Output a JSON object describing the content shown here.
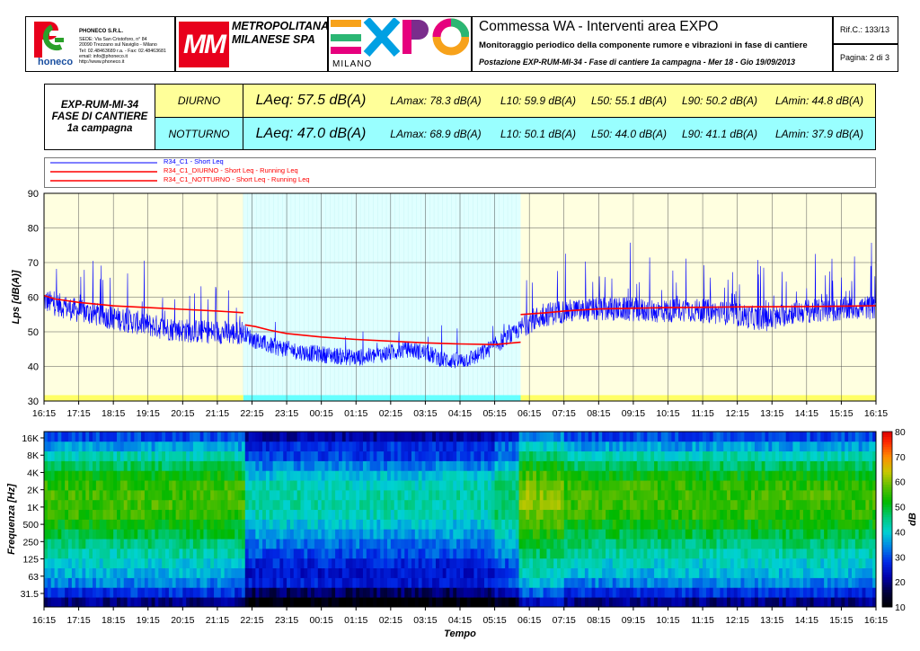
{
  "header": {
    "company": {
      "logo_text": "honeco",
      "name": "PHONECO S.R.L.",
      "lines": [
        "SEDE: Via San Cristoforo, n° 84",
        "20090 Trezzano sul Naviglio - Milano",
        "Tel: 02.48463689 r.a. - Fax: 02.48463681",
        "email: info@phoneco.it",
        "http://www.phoneco.it"
      ]
    },
    "client": {
      "logo_text": "MM",
      "name_line1": "METROPOLITANA",
      "name_line2": "MILANESE SPA"
    },
    "expo": {
      "logo_text": "EXPO",
      "sub": "MILANO"
    },
    "title": "Commessa WA - Interventi area EXPO",
    "subtitle": "Monitoraggio periodico della componente rumore e vibrazioni in fase di cantiere",
    "station": "Postazione EXP-RUM-MI-34 - Fase di cantiere 1a campagna - Mer 18 - Gio 19/09/2013",
    "ref": "Rif.C.: 133/13",
    "page": "Pagina: 2 di 3"
  },
  "summary": {
    "label_lines": [
      "EXP-RUM-MI-34",
      "FASE DI CANTIERE",
      "1a campagna"
    ],
    "colors": {
      "day": "#ffff99",
      "night": "#99ffff"
    },
    "rows": [
      {
        "period": "DIURNO",
        "laeq": "LAeq: 57.5 dB(A)",
        "lamax": "LAmax: 78.3 dB(A)",
        "l10": "L10: 59.9 dB(A)",
        "l50": "L50: 55.1 dB(A)",
        "l90": "L90: 50.2 dB(A)",
        "lamin": "LAmin: 44.8 dB(A)"
      },
      {
        "period": "NOTTURNO",
        "laeq": "LAeq: 47.0 dB(A)",
        "lamax": "LAmax: 68.9 dB(A)",
        "l10": "L10: 50.1 dB(A)",
        "l50": "L50: 44.0 dB(A)",
        "l90": "L90: 41.1 dB(A)",
        "lamin": "LAmin: 37.9 dB(A)"
      }
    ]
  },
  "chart_data": [
    {
      "type": "line",
      "legend": [
        {
          "name": "R34_C1 - Short Leq",
          "color": "#0000ff"
        },
        {
          "name": "R34_C1_DIURNO - Short Leq - Running Leq",
          "color": "#ff0000"
        },
        {
          "name": "R34_C1_NOTTURNO - Short Leq - Running Leq",
          "color": "#ff0000"
        }
      ],
      "ylabel": "Lps [dB(A)]",
      "ylim": [
        30,
        90
      ],
      "yticks": [
        30,
        40,
        50,
        60,
        70,
        80,
        90
      ],
      "xticks": [
        "16:15",
        "17:15",
        "18:15",
        "19:15",
        "20:15",
        "21:15",
        "22:15",
        "23:15",
        "00:15",
        "01:15",
        "02:15",
        "03:15",
        "04:15",
        "05:15",
        "06:15",
        "07:15",
        "08:15",
        "09:15",
        "10:15",
        "11:15",
        "12:15",
        "13:15",
        "14:15",
        "15:15",
        "16:15"
      ],
      "x_range_hours": [
        0,
        24
      ],
      "night_period_hours": [
        5.75,
        13.75
      ],
      "colors": {
        "day_bg": "#ffffe0",
        "night_bg": "#e0ffff",
        "day_band": "#ffff66",
        "night_band": "#66ffff",
        "short_leq": "#0000ff",
        "running_leq": "#ff0000"
      },
      "short_leq_profile": [
        [
          0,
          59
        ],
        [
          0.5,
          57.5
        ],
        [
          1,
          56
        ],
        [
          1.5,
          55
        ],
        [
          2,
          54
        ],
        [
          2.5,
          53
        ],
        [
          3,
          52
        ],
        [
          3.5,
          51
        ],
        [
          4,
          50.5
        ],
        [
          4.5,
          50
        ],
        [
          5,
          50
        ],
        [
          5.5,
          49.5
        ],
        [
          5.75,
          50
        ],
        [
          6,
          48
        ],
        [
          6.5,
          46
        ],
        [
          7,
          45
        ],
        [
          7.5,
          44
        ],
        [
          8,
          43.5
        ],
        [
          8.5,
          43
        ],
        [
          9,
          42.5
        ],
        [
          9.5,
          43
        ],
        [
          10,
          44
        ],
        [
          10.5,
          45
        ],
        [
          11,
          44
        ],
        [
          11.5,
          42
        ],
        [
          12,
          41.5
        ],
        [
          12.5,
          43
        ],
        [
          13,
          46
        ],
        [
          13.5,
          49
        ],
        [
          14,
          53
        ],
        [
          14.5,
          55
        ],
        [
          15,
          56
        ],
        [
          15.5,
          56
        ],
        [
          16,
          56.5
        ],
        [
          16.5,
          56.5
        ],
        [
          17,
          56.5
        ],
        [
          17.5,
          56
        ],
        [
          18,
          56
        ],
        [
          18.5,
          56.5
        ],
        [
          19,
          56
        ],
        [
          19.5,
          55.5
        ],
        [
          20,
          55
        ],
        [
          20.5,
          54
        ],
        [
          21,
          53.5
        ],
        [
          21.5,
          55.5
        ],
        [
          22,
          56
        ],
        [
          22.5,
          56
        ],
        [
          23,
          56.5
        ],
        [
          23.5,
          57
        ],
        [
          24,
          57
        ]
      ],
      "running_leq_day1": [
        [
          0,
          60.5
        ],
        [
          0.3,
          59.5
        ],
        [
          1,
          58.5
        ],
        [
          2,
          57.5
        ],
        [
          3,
          57
        ],
        [
          4,
          56.5
        ],
        [
          5,
          56
        ],
        [
          5.75,
          55.5
        ]
      ],
      "running_leq_night": [
        [
          5.8,
          52
        ],
        [
          6.1,
          51.5
        ],
        [
          6.5,
          50.5
        ],
        [
          7,
          49.5
        ],
        [
          8,
          48.5
        ],
        [
          9,
          47.8
        ],
        [
          10,
          47.3
        ],
        [
          11,
          46.8
        ],
        [
          12,
          46.5
        ],
        [
          13,
          46.3
        ],
        [
          13.75,
          47
        ]
      ],
      "running_leq_day2": [
        [
          13.75,
          55
        ],
        [
          14.5,
          55.5
        ],
        [
          15,
          56
        ],
        [
          16,
          56.6
        ],
        [
          18,
          57
        ],
        [
          20,
          57.2
        ],
        [
          22,
          57.3
        ],
        [
          24,
          57.5
        ]
      ]
    },
    {
      "type": "heatmap",
      "xlabel": "Tempo",
      "ylabel": "Frequenza [Hz]",
      "colorbar_label": "dB",
      "yticks": [
        "16K",
        "8K",
        "4K",
        "2K",
        "1K",
        "500",
        "250",
        "125",
        "63",
        "31.5"
      ],
      "xticks": [
        "16:15",
        "17:15",
        "18:15",
        "19:15",
        "20:15",
        "21:15",
        "22:15",
        "23:15",
        "00:15",
        "01:15",
        "02:15",
        "03:15",
        "04:15",
        "05:15",
        "06:15",
        "07:15",
        "08:15",
        "09:15",
        "10:15",
        "11:15",
        "12:15",
        "13:15",
        "14:15",
        "15:15",
        "16:15"
      ],
      "colorbar_ticks": [
        10,
        20,
        30,
        40,
        50,
        60,
        70,
        80
      ],
      "zlim": [
        10,
        80
      ]
    }
  ]
}
